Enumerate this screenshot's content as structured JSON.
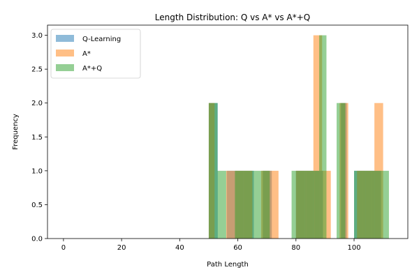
{
  "chart_data": {
    "type": "bar",
    "subtype": "overlaid-histogram",
    "title": "Length Distribution: Q vs A* vs A*+Q",
    "xlabel": "Path Length",
    "ylabel": "Frequency",
    "xlim": [
      -5.5,
      118.5
    ],
    "ylim": [
      0,
      3.15
    ],
    "bar_opacity": 0.5,
    "grid": false,
    "legend_position": "top-left",
    "x_ticks": [
      0,
      20,
      40,
      60,
      80,
      100
    ],
    "x_tick_labels": [
      "0",
      "20",
      "40",
      "60",
      "80",
      "100"
    ],
    "y_ticks": [
      0.0,
      0.5,
      1.0,
      1.5,
      2.0,
      2.5,
      3.0
    ],
    "y_tick_labels": [
      "0.0",
      "0.5",
      "1.0",
      "1.5",
      "2.0",
      "2.5",
      "3.0"
    ],
    "series": [
      {
        "name": "Q-Learning",
        "color": "#1f77b4",
        "bins": [
          {
            "x0": 50.0,
            "x1": 53.1,
            "count": 2
          },
          {
            "x0": 56.2,
            "x1": 59.3,
            "count": 1
          },
          {
            "x0": 59.3,
            "x1": 62.4,
            "count": 1
          },
          {
            "x0": 62.4,
            "x1": 65.5,
            "count": 1
          },
          {
            "x0": 68.6,
            "x1": 71.7,
            "count": 1
          },
          {
            "x0": 80.0,
            "x1": 83.1,
            "count": 1
          },
          {
            "x0": 83.1,
            "x1": 86.2,
            "count": 1
          },
          {
            "x0": 86.2,
            "x1": 89.3,
            "count": 1
          },
          {
            "x0": 95.5,
            "x1": 97.5,
            "count": 2
          },
          {
            "x0": 100.0,
            "x1": 103.1,
            "count": 1
          },
          {
            "x0": 103.1,
            "x1": 106.2,
            "count": 1
          },
          {
            "x0": 106.2,
            "x1": 109.3,
            "count": 1
          }
        ]
      },
      {
        "name": "A*",
        "color": "#ff7f0e",
        "bins": [
          {
            "x0": 50.0,
            "x1": 52.0,
            "count": 2
          },
          {
            "x0": 56.0,
            "x1": 59.0,
            "count": 1
          },
          {
            "x0": 59.0,
            "x1": 62.0,
            "count": 1
          },
          {
            "x0": 62.0,
            "x1": 65.0,
            "count": 1
          },
          {
            "x0": 68.0,
            "x1": 71.0,
            "count": 1
          },
          {
            "x0": 71.0,
            "x1": 74.0,
            "count": 1
          },
          {
            "x0": 80.0,
            "x1": 83.0,
            "count": 1
          },
          {
            "x0": 83.0,
            "x1": 86.0,
            "count": 1
          },
          {
            "x0": 86.0,
            "x1": 89.0,
            "count": 3
          },
          {
            "x0": 89.0,
            "x1": 92.0,
            "count": 1
          },
          {
            "x0": 95.0,
            "x1": 98.0,
            "count": 2
          },
          {
            "x0": 101.0,
            "x1": 104.0,
            "count": 1
          },
          {
            "x0": 104.0,
            "x1": 107.0,
            "count": 1
          },
          {
            "x0": 107.0,
            "x1": 110.0,
            "count": 2
          }
        ]
      },
      {
        "name": "A*+Q",
        "color": "#2ca02c",
        "bins": [
          {
            "x0": 50.0,
            "x1": 53.0,
            "count": 2
          },
          {
            "x0": 53.0,
            "x1": 56.0,
            "count": 1
          },
          {
            "x0": 59.0,
            "x1": 62.0,
            "count": 1
          },
          {
            "x0": 62.0,
            "x1": 65.0,
            "count": 1
          },
          {
            "x0": 65.0,
            "x1": 68.0,
            "count": 1
          },
          {
            "x0": 68.0,
            "x1": 71.0,
            "count": 1
          },
          {
            "x0": 78.5,
            "x1": 80.5,
            "count": 1
          },
          {
            "x0": 80.5,
            "x1": 83.5,
            "count": 1
          },
          {
            "x0": 83.5,
            "x1": 86.5,
            "count": 1
          },
          {
            "x0": 86.5,
            "x1": 88.0,
            "count": 1
          },
          {
            "x0": 88.0,
            "x1": 90.5,
            "count": 3
          },
          {
            "x0": 94.0,
            "x1": 97.0,
            "count": 2
          },
          {
            "x0": 100.0,
            "x1": 103.0,
            "count": 1
          },
          {
            "x0": 103.0,
            "x1": 106.0,
            "count": 1
          },
          {
            "x0": 106.0,
            "x1": 109.0,
            "count": 1
          },
          {
            "x0": 109.0,
            "x1": 112.0,
            "count": 1
          }
        ]
      }
    ]
  }
}
